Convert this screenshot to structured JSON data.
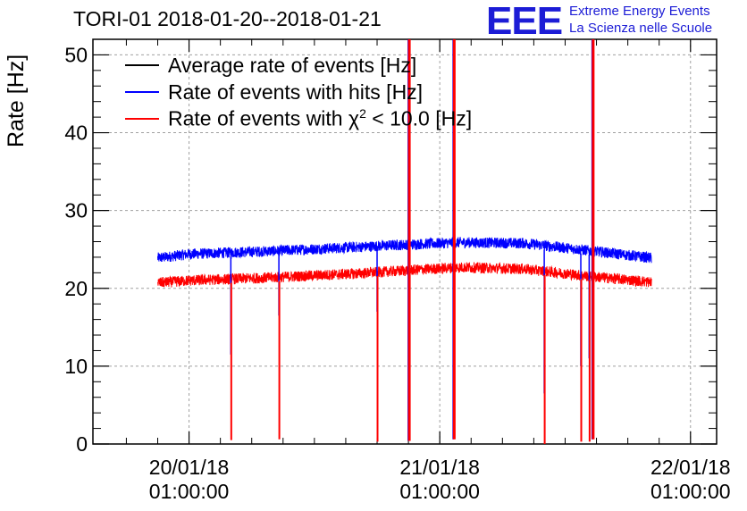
{
  "header": {
    "title": "TORI-01 2018-01-20--2018-01-21",
    "logo": "EEE",
    "logo_line1": "Extreme Energy Events",
    "logo_line2": "La Scienza nelle Scuole"
  },
  "colors": {
    "average": "#000000",
    "hits": "#0000ff",
    "chi2": "#ff0000"
  },
  "chart_data": {
    "type": "line",
    "title": "TORI-01 2018-01-20--2018-01-21",
    "xlabel": "",
    "ylabel": "Rate [Hz]",
    "ylim": [
      0,
      52
    ],
    "yticks": [
      0,
      10,
      20,
      30,
      40,
      50
    ],
    "xlim_hours": [
      -9.2,
      50.5
    ],
    "xticks": [
      {
        "hours": 0,
        "line1": "20/01/18",
        "line2": "01:00:00"
      },
      {
        "hours": 24,
        "line1": "21/01/18",
        "line2": "01:00:00"
      },
      {
        "hours": 48,
        "line1": "22/01/18",
        "line2": "01:00:00"
      }
    ],
    "grid": true,
    "legend_position": "top-left",
    "legend": [
      {
        "label": "Average rate of events [Hz]",
        "color": "#000000"
      },
      {
        "label": "Rate of events with hits [Hz]",
        "color": "#0000ff"
      },
      {
        "label_prefix": "Rate of events with ",
        "label_symbol": "χ",
        "label_sup": "2",
        "label_suffix": " < 10.0 [Hz]",
        "color": "#ff0000"
      }
    ],
    "series": [
      {
        "name": "Rate of events with hits [Hz]",
        "color": "#0000ff",
        "x_start_hours": -3.0,
        "x_end_hours": 44.3,
        "baseline": [
          [
            -3.0,
            23.9
          ],
          [
            0,
            24.4
          ],
          [
            8,
            24.8
          ],
          [
            16,
            25.3
          ],
          [
            22,
            25.7
          ],
          [
            26,
            25.9
          ],
          [
            32,
            25.8
          ],
          [
            38,
            24.9
          ],
          [
            44.3,
            23.9
          ]
        ],
        "noise_amplitude": 0.7
      },
      {
        "name": "Rate of events with chi2 < 10.0 [Hz]",
        "color": "#ff0000",
        "x_start_hours": -3.0,
        "x_end_hours": 44.3,
        "baseline": [
          [
            -3.0,
            20.7
          ],
          [
            0,
            21.0
          ],
          [
            8,
            21.4
          ],
          [
            16,
            21.9
          ],
          [
            22,
            22.4
          ],
          [
            26,
            22.7
          ],
          [
            32,
            22.5
          ],
          [
            38,
            21.6
          ],
          [
            44.3,
            20.8
          ]
        ],
        "noise_amplitude": 0.7
      }
    ],
    "dips": [
      {
        "hours": 4.0,
        "red_min": 0.5,
        "blue_min": 11.5
      },
      {
        "hours": 8.6,
        "red_min": 0.6,
        "blue_min": 16.5
      },
      {
        "hours": 18.0,
        "red_min": 0.3,
        "blue_min": 17.0
      },
      {
        "hours": 34.0,
        "red_min": 0.0,
        "blue_min": 6.5
      },
      {
        "hours": 37.5,
        "red_min": 0.3,
        "blue_min": 10.0
      },
      {
        "hours": 38.3,
        "red_min": 0.3,
        "blue_min": 11.0
      }
    ],
    "spikes": [
      {
        "hours": 21.0,
        "dip_min": 0.4
      },
      {
        "hours": 25.3,
        "dip_min": 0.6
      },
      {
        "hours": 38.6,
        "dip_min": 0.6
      }
    ]
  }
}
